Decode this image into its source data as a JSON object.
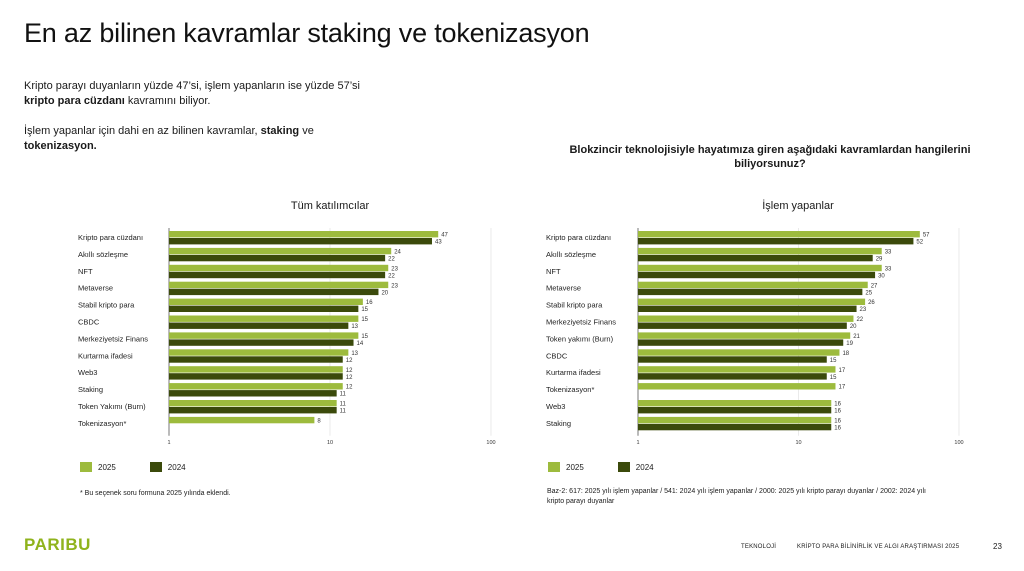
{
  "title": "En az bilinen kavramlar staking ve tokenizasyon",
  "intro": {
    "line1": "Kripto parayı duyanların yüzde 47’si, işlem yapanların ise yüzde 57’si",
    "line2_bold": "kripto para cüzdanı",
    "line2_rest": " kavramını biliyor.",
    "line3": "İşlem yapanlar için dahi en az bilinen kavramlar, ",
    "line3_bold": "staking",
    "line3_rest": " ve",
    "line4_bold": "tokenizasyon."
  },
  "question": "Blokzincir teknolojisiyle hayatımıza giren aşağıdaki kavramlardan hangilerini biliyorsunuz?",
  "colors": {
    "y2025": "#9dbb3d",
    "y2024": "#3b4a0b",
    "brand": "#8fb31c"
  },
  "chart_data": [
    {
      "type": "bar",
      "orientation": "horizontal",
      "title": "Tüm katılımcılar",
      "xscale": "log",
      "xlim": [
        1,
        100
      ],
      "xticks": [
        "1",
        "10",
        "100"
      ],
      "legend": [
        "2025",
        "2024"
      ],
      "categories": [
        "Kripto para cüzdanı",
        "Akıllı sözleşme",
        "NFT",
        "Metaverse",
        "Stabil kripto para",
        "CBDC",
        "Merkeziyetsiz Finans",
        "Kurtarma ifadesi",
        "Web3",
        "Staking",
        "Token Yakımı (Burn)",
        "Tokenizasyon*"
      ],
      "series": [
        {
          "name": "2025",
          "values": [
            47,
            24,
            23,
            23,
            16,
            15,
            15,
            13,
            12,
            12,
            11,
            8
          ]
        },
        {
          "name": "2024",
          "values": [
            43,
            22,
            22,
            20,
            15,
            13,
            14,
            12,
            12,
            11,
            11,
            null
          ]
        }
      ]
    },
    {
      "type": "bar",
      "orientation": "horizontal",
      "title": "İşlem yapanlar",
      "xscale": "log",
      "xlim": [
        1,
        100
      ],
      "xticks": [
        "1",
        "10",
        "100"
      ],
      "legend": [
        "2025",
        "2024"
      ],
      "categories": [
        "Kripto para cüzdanı",
        "Akıllı sözleşme",
        "NFT",
        "Metaverse",
        "Stabil kripto para",
        "Merkeziyetsiz Finans",
        "Token yakımı (Burn)",
        "CBDC",
        "Kurtarma ifadesi",
        "Tokenizasyon*",
        "Web3",
        "Staking"
      ],
      "series": [
        {
          "name": "2025",
          "values": [
            57,
            33,
            33,
            27,
            26,
            22,
            21,
            18,
            17,
            17,
            16,
            16
          ]
        },
        {
          "name": "2024",
          "values": [
            52,
            29,
            30,
            25,
            23,
            20,
            19,
            15,
            15,
            null,
            16,
            16
          ]
        }
      ]
    }
  ],
  "legend": {
    "y2025": "2025",
    "y2024": "2024"
  },
  "footnote": "* Bu seçenek soru formuna 2025 yılında eklendi.",
  "base_note": "Baz-2: 617: 2025 yılı işlem yapanlar / 541: 2024 yılı işlem yapanlar / 2000: 2025 yılı kripto parayı duyanlar / 2002: 2024 yılı kripto parayı duyanlar",
  "footer": {
    "logo": "PARIBU",
    "section": "TEKNOLOJİ",
    "report": "KRİPTO PARA BİLİNİRLİK VE ALGI ARAŞTIRMASI 2025",
    "page": "23"
  }
}
